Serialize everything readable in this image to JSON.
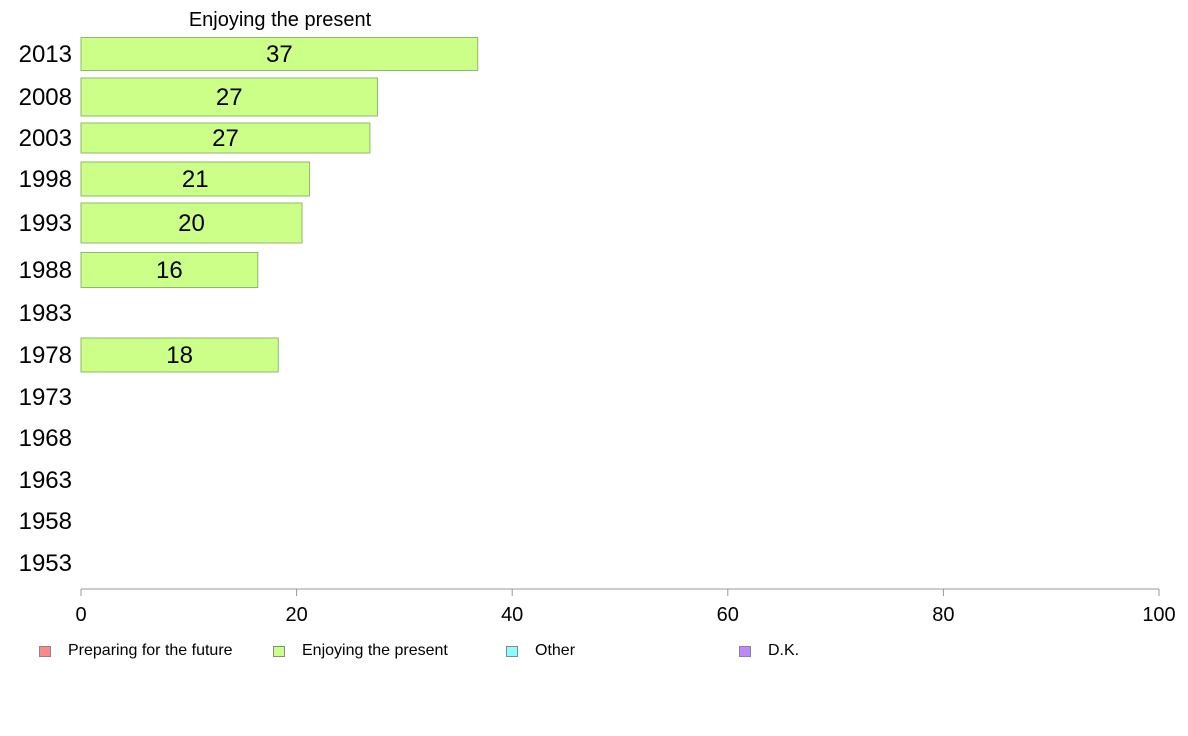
{
  "chart_data": {
    "type": "bar",
    "orientation": "horizontal",
    "title": "Enjoying the present",
    "categories": [
      "2013",
      "2008",
      "2003",
      "1998",
      "1993",
      "1988",
      "1983",
      "1978",
      "1973",
      "1968",
      "1963",
      "1958",
      "1953"
    ],
    "series": [
      {
        "name": "Enjoying the present",
        "color": "#ccff88",
        "values": [
          36.8,
          27.5,
          26.8,
          21.2,
          20.5,
          16.4,
          null,
          18.3,
          null,
          null,
          null,
          null,
          null
        ],
        "labels": [
          "37",
          "27",
          "27",
          "21",
          "20",
          "16",
          "",
          "18",
          "",
          "",
          "",
          "",
          ""
        ]
      }
    ],
    "xlim": [
      0,
      100
    ],
    "xticks": [
      "0",
      "20",
      "40",
      "60",
      "80",
      "100"
    ],
    "grid": false,
    "legend_position": "bottom"
  },
  "legend": [
    {
      "label": "Preparing for the future",
      "color": "#ff8888"
    },
    {
      "label": "Enjoying the present",
      "color": "#ccff88"
    },
    {
      "label": "Other",
      "color": "#88ffff"
    },
    {
      "label": "D.K.",
      "color": "#bb88ff"
    }
  ]
}
